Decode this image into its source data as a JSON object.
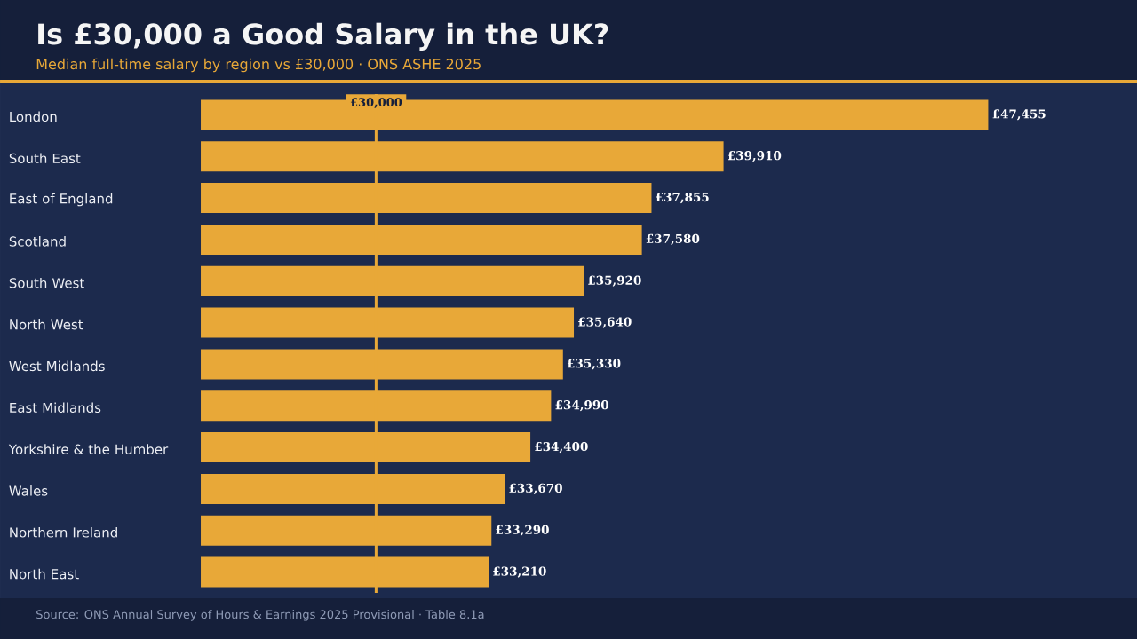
{
  "chart_data": {
    "type": "bar",
    "orientation": "horizontal",
    "title": "Is £30,000 a Good Salary in the UK?",
    "subtitle": "Median full-time salary by region vs £30,000 · ONS ASHE 2025",
    "categories": [
      "London",
      "South East",
      "East of England",
      "Scotland",
      "South West",
      "North West",
      "West Midlands",
      "East Midlands",
      "Yorkshire & the Humber",
      "Wales",
      "Northern Ireland",
      "North East"
    ],
    "values": [
      47455,
      39910,
      37855,
      37580,
      35920,
      35640,
      35330,
      34990,
      34400,
      33670,
      33290,
      33210
    ],
    "value_labels": [
      "£47,455",
      "£39,910",
      "£37,855",
      "£37,580",
      "£35,920",
      "£35,640",
      "£35,330",
      "£34,990",
      "£34,400",
      "£33,670",
      "£33,290",
      "£33,210"
    ],
    "color": "#e8a838",
    "xlim": [
      25000,
      51700
    ],
    "ref_lines": [
      {
        "axis": "x",
        "value": 30000,
        "label": "£30,000",
        "color": "#e8a838"
      }
    ],
    "annotations": [
      "Source: ONS Annual Survey of Hours & Earnings 2025 Provisional · Table 8.1a"
    ]
  }
}
